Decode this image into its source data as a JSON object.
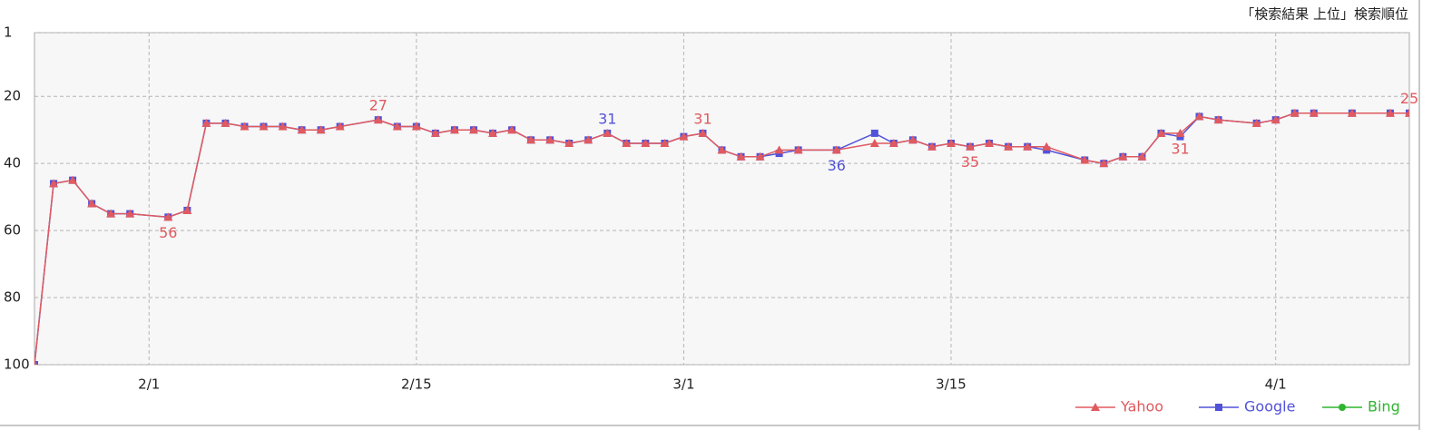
{
  "chart_data": {
    "type": "line",
    "title": "「検索結果 上位」検索順位",
    "x": [
      "1/26",
      "1/27",
      "1/28",
      "1/29",
      "1/30",
      "1/31",
      "2/2",
      "2/3",
      "2/4",
      "2/5",
      "2/6",
      "2/7",
      "2/8",
      "2/9",
      "2/10",
      "2/11",
      "2/13",
      "2/14",
      "2/15",
      "2/16",
      "2/17",
      "2/18",
      "2/19",
      "2/20",
      "2/21",
      "2/22",
      "2/23",
      "2/24",
      "2/25",
      "2/26",
      "2/27",
      "2/28",
      "3/1",
      "3/2",
      "3/3",
      "3/4",
      "3/5",
      "3/6",
      "3/7",
      "3/9",
      "3/11",
      "3/12",
      "3/13",
      "3/14",
      "3/15",
      "3/16",
      "3/17",
      "3/18",
      "3/19",
      "3/20",
      "3/22",
      "3/23",
      "3/24",
      "3/25",
      "3/26",
      "3/27",
      "3/28",
      "3/29",
      "3/31",
      "4/1",
      "4/2",
      "4/3",
      "4/5",
      "4/7",
      "4/8"
    ],
    "xlim": [
      "1/26",
      "4/8"
    ],
    "xticks": [
      "2/1",
      "2/15",
      "3/1",
      "3/15",
      "4/1"
    ],
    "ylim": [
      100,
      1
    ],
    "yticks": [
      1,
      20,
      40,
      60,
      80,
      100
    ],
    "grid": true,
    "legend": "bottom-right",
    "series": [
      {
        "name": "Yahoo",
        "color": "#e05a5f",
        "marker": "triangle",
        "values": [
          100,
          46,
          45,
          52,
          55,
          55,
          56,
          54,
          28,
          28,
          29,
          29,
          29,
          30,
          30,
          29,
          27,
          29,
          29,
          31,
          30,
          30,
          31,
          30,
          33,
          33,
          34,
          33,
          31,
          34,
          34,
          34,
          32,
          31,
          36,
          38,
          38,
          36,
          36,
          36,
          34,
          34,
          33,
          35,
          34,
          35,
          34,
          35,
          35,
          35,
          39,
          40,
          38,
          38,
          31,
          31,
          26,
          27,
          28,
          27,
          25,
          25,
          25,
          25,
          25
        ],
        "label_x": [
          "2/2",
          "2/13",
          "3/2",
          "3/16",
          "3/27",
          "4/8"
        ]
      },
      {
        "name": "Google",
        "color": "#5252d9",
        "marker": "square",
        "values": [
          100,
          46,
          45,
          52,
          55,
          55,
          56,
          54,
          28,
          28,
          29,
          29,
          29,
          30,
          30,
          29,
          27,
          29,
          29,
          31,
          30,
          30,
          31,
          30,
          33,
          33,
          34,
          33,
          31,
          34,
          34,
          34,
          32,
          31,
          36,
          38,
          38,
          37,
          36,
          36,
          31,
          34,
          33,
          35,
          34,
          35,
          34,
          35,
          35,
          36,
          39,
          40,
          38,
          38,
          31,
          32,
          26,
          27,
          28,
          27,
          25,
          25,
          25,
          25,
          25
        ],
        "label_x": [
          "2/25",
          "3/9"
        ]
      },
      {
        "name": "Bing",
        "color": "#2fb52f",
        "marker": "circle",
        "values": [
          null,
          null,
          null,
          null,
          null,
          null,
          null,
          null,
          null,
          null,
          null,
          null,
          null,
          null,
          null,
          null,
          null,
          null,
          null,
          null,
          null,
          null,
          null,
          null,
          null,
          null,
          null,
          null,
          null,
          null,
          null,
          null,
          null,
          null,
          null,
          null,
          null,
          null,
          null,
          null,
          null,
          null,
          null,
          null,
          null,
          null,
          null,
          null,
          null,
          null,
          null,
          null,
          null,
          null,
          null,
          null,
          null,
          null,
          null,
          null,
          null,
          null,
          null,
          null,
          null
        ]
      }
    ]
  }
}
